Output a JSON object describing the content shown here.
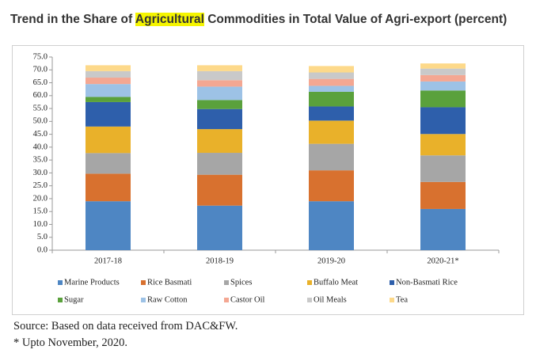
{
  "heading": {
    "parts": [
      "Trend in the Share of",
      "Agricultural",
      "Commodities in Total Value of Agri-export (percent)"
    ]
  },
  "chart_data": {
    "type": "stacked_bar",
    "categories": [
      "2017-18",
      "2018-19",
      "2019-20",
      "2020-21*"
    ],
    "series": [
      {
        "name": "Marine Products",
        "color": "#4e86c3",
        "values": [
          19,
          17.3,
          19,
          16
        ]
      },
      {
        "name": "Rice Basmati",
        "color": "#d8712f",
        "values": [
          10.7,
          12,
          12,
          10.5
        ]
      },
      {
        "name": "Spices",
        "color": "#a6a6a6",
        "values": [
          8,
          8.5,
          10.3,
          10.3
        ]
      },
      {
        "name": "Buffalo Meat",
        "color": "#e9b12a",
        "values": [
          10.3,
          9.2,
          9,
          8.3
        ]
      },
      {
        "name": "Non-Basmati Rice",
        "color": "#2e5fab",
        "values": [
          9.5,
          7.8,
          5.5,
          10.4
        ]
      },
      {
        "name": "Sugar",
        "color": "#5aa13c",
        "values": [
          2,
          3.5,
          5.7,
          6.5
        ]
      },
      {
        "name": "Raw Cotton",
        "color": "#9dc2e6",
        "values": [
          5,
          5.2,
          2.3,
          3.5
        ]
      },
      {
        "name": "Castor Oil",
        "color": "#f4a792",
        "values": [
          2.5,
          2.5,
          2.7,
          2.5
        ]
      },
      {
        "name": "Oil Meals",
        "color": "#c9c9c9",
        "values": [
          2.5,
          3.5,
          2.5,
          2.5
        ]
      },
      {
        "name": "Tea",
        "color": "#fdd98a",
        "values": [
          2.3,
          2.3,
          2.5,
          2
        ]
      }
    ],
    "ylim": [
      0,
      75
    ],
    "yticks": [
      {
        "value": 0,
        "label": "0.0"
      },
      {
        "value": 5,
        "label": "5.0"
      },
      {
        "value": 10,
        "label": "10.0"
      },
      {
        "value": 15,
        "label": "15.0"
      },
      {
        "value": 20,
        "label": "20.0"
      },
      {
        "value": 25,
        "label": "25.0"
      },
      {
        "value": 30,
        "label": "30.0"
      },
      {
        "value": 35,
        "label": "35.0"
      },
      {
        "value": 40,
        "label": "40.0"
      },
      {
        "value": 45,
        "label": "45.0"
      },
      {
        "value": 50,
        "label": "50.0"
      },
      {
        "value": 55,
        "label": "55.0"
      },
      {
        "value": 60,
        "label": "60.0"
      },
      {
        "value": 65,
        "label": "65.0"
      },
      {
        "value": 70,
        "label": "70.0"
      },
      {
        "value": 75,
        "label": "75.0"
      }
    ],
    "grid": false,
    "legend": "bottom"
  },
  "notes": [
    "Source: Based on data received from DAC&FW.",
    "* Upto November, 2020."
  ]
}
